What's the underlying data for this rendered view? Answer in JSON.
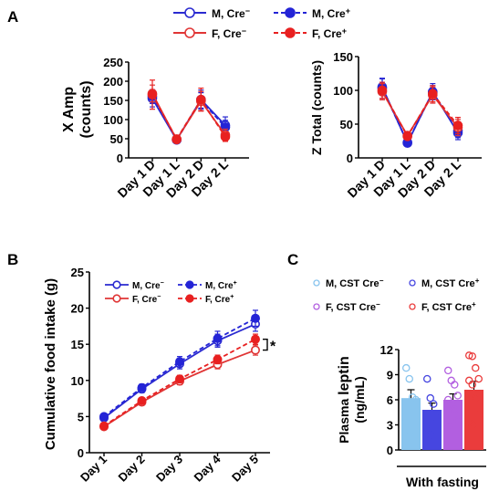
{
  "panels": {
    "a": "A",
    "b": "B",
    "c": "C"
  },
  "colors": {
    "m_cre_neg": "#2a2ad0",
    "m_cre_pos": "#2424d6",
    "f_cre_neg": "#e03535",
    "f_cre_pos": "#e82020",
    "c_m_neg": "#88c4ee",
    "c_m_pos": "#4646e0",
    "c_f_neg": "#b25fe0",
    "c_f_pos": "#ea3c3c"
  },
  "legend_a": {
    "m_neg": {
      "base": "M, Cre",
      "sup": "−"
    },
    "m_pos": {
      "base": "M, Cre",
      "sup": "+"
    },
    "f_neg": {
      "base": "F, Cre",
      "sup": "−"
    },
    "f_pos": {
      "base": "F, Cre",
      "sup": "+"
    }
  },
  "legend_b": {
    "m_neg": {
      "base": "M, Cre",
      "sup": "−"
    },
    "m_pos": {
      "base": "M, Cre",
      "sup": "+"
    },
    "f_neg": {
      "base": "F, Cre",
      "sup": "−"
    },
    "f_pos": {
      "base": "F, Cre",
      "sup": "+"
    }
  },
  "legend_c": {
    "m_neg": {
      "base": "M, CST Cre",
      "sup": "−"
    },
    "m_pos": {
      "base": "M, CST Cre",
      "sup": "+"
    },
    "f_neg": {
      "base": "F, CST Cre",
      "sup": "−"
    },
    "f_pos": {
      "base": "F, CST Cre",
      "sup": "+"
    }
  },
  "chart_data": [
    {
      "panel": "A-left",
      "type": "line",
      "ylabel_line1": "X Amp",
      "ylabel_line2": "(counts)",
      "categories": [
        "Day 1 D",
        "Day 1 L",
        "Day 2 D",
        "Day 2 L"
      ],
      "yticks": [
        "0",
        "50",
        "100",
        "150",
        "200",
        "250"
      ],
      "ylim": [
        0,
        250
      ],
      "series": [
        {
          "name": "M, Cre−",
          "key": "m_neg",
          "values": [
            155,
            47,
            152,
            85
          ],
          "err": [
            22,
            5,
            25,
            22
          ]
        },
        {
          "name": "M, Cre+",
          "key": "m_pos",
          "values": [
            160,
            47,
            150,
            80
          ],
          "err": [
            18,
            5,
            20,
            18
          ]
        },
        {
          "name": "F, Cre−",
          "key": "f_neg",
          "values": [
            168,
            48,
            148,
            60
          ],
          "err": [
            22,
            5,
            25,
            15
          ]
        },
        {
          "name": "F, Cre+",
          "key": "f_pos",
          "values": [
            165,
            49,
            152,
            55
          ],
          "err": [
            38,
            5,
            30,
            12
          ]
        }
      ]
    },
    {
      "panel": "A-right",
      "type": "line",
      "ylabel": "Z Total (counts)",
      "categories": [
        "Day 1 D",
        "Day 1 L",
        "Day 2 D",
        "Day 2 L"
      ],
      "yticks": [
        "0",
        "50",
        "100",
        "150"
      ],
      "ylim": [
        0,
        150
      ],
      "series": [
        {
          "name": "M, Cre−",
          "key": "m_neg",
          "values": [
            105,
            22,
            98,
            37
          ],
          "err": [
            12,
            3,
            12,
            10
          ]
        },
        {
          "name": "M, Cre+",
          "key": "m_pos",
          "values": [
            103,
            23,
            97,
            40
          ],
          "err": [
            15,
            3,
            10,
            10
          ]
        },
        {
          "name": "F, Cre−",
          "key": "f_neg",
          "values": [
            98,
            33,
            93,
            45
          ],
          "err": [
            12,
            3,
            12,
            12
          ]
        },
        {
          "name": "F, Cre+",
          "key": "f_pos",
          "values": [
            100,
            32,
            95,
            48
          ],
          "err": [
            12,
            3,
            12,
            12
          ]
        }
      ]
    },
    {
      "panel": "B",
      "type": "line",
      "ylabel": "Cumulative food intake (g)",
      "categories": [
        "Day 1",
        "Day 2",
        "Day 3",
        "Day 4",
        "Day 5"
      ],
      "yticks": [
        "0",
        "5",
        "10",
        "15",
        "20",
        "25"
      ],
      "ylim": [
        0,
        25
      ],
      "annotation": "*",
      "series": [
        {
          "name": "M, Cre−",
          "key": "m_neg",
          "values": [
            4.8,
            8.8,
            12.3,
            15.5,
            17.8
          ],
          "err": [
            0.3,
            0.5,
            0.7,
            0.9,
            1.0
          ]
        },
        {
          "name": "M, Cre+",
          "key": "m_pos",
          "values": [
            5.0,
            9.0,
            12.6,
            15.8,
            18.6
          ],
          "err": [
            0.3,
            0.5,
            0.7,
            1.0,
            1.1
          ]
        },
        {
          "name": "F, Cre−",
          "key": "f_neg",
          "values": [
            3.6,
            7.0,
            9.9,
            12.2,
            14.2
          ],
          "err": [
            0.2,
            0.4,
            0.5,
            0.6,
            0.7
          ]
        },
        {
          "name": "F, Cre+",
          "key": "f_pos",
          "values": [
            3.7,
            7.2,
            10.2,
            12.9,
            15.7
          ],
          "err": [
            0.2,
            0.4,
            0.5,
            0.6,
            0.7
          ]
        }
      ]
    },
    {
      "panel": "C",
      "type": "bar",
      "ylabel_prefix": "Plasma ",
      "ylabel_bold": "leptin",
      "ylabel_line2": "(ng/mL)",
      "xlabel": "With fasting",
      "yticks": [
        "0",
        "3",
        "6",
        "9",
        "12"
      ],
      "ylim": [
        0,
        12
      ],
      "categories": [
        "M, CST Cre−",
        "M, CST Cre+",
        "F, CST Cre−",
        "F, CST Cre+"
      ],
      "series": [
        {
          "key": "c_m_neg",
          "value": 6.2,
          "err": 1.0,
          "points": [
            9.8,
            8.5,
            6.3,
            6.0,
            3.8,
            1.8
          ]
        },
        {
          "key": "c_m_pos",
          "value": 4.8,
          "err": 0.8,
          "points": [
            8.5,
            6.2,
            5.5,
            3.8,
            2.5,
            1.8
          ]
        },
        {
          "key": "c_f_neg",
          "value": 6.0,
          "err": 0.7,
          "points": [
            9.5,
            8.3,
            7.8,
            6.5,
            6.0,
            5.5,
            4.8,
            3.5,
            2.8
          ]
        },
        {
          "key": "c_f_pos",
          "value": 7.2,
          "err": 1.0,
          "points": [
            11.3,
            11.2,
            9.8,
            8.5,
            8.3,
            7.8,
            6.2,
            4.2,
            3.3,
            3.0
          ]
        }
      ]
    }
  ]
}
